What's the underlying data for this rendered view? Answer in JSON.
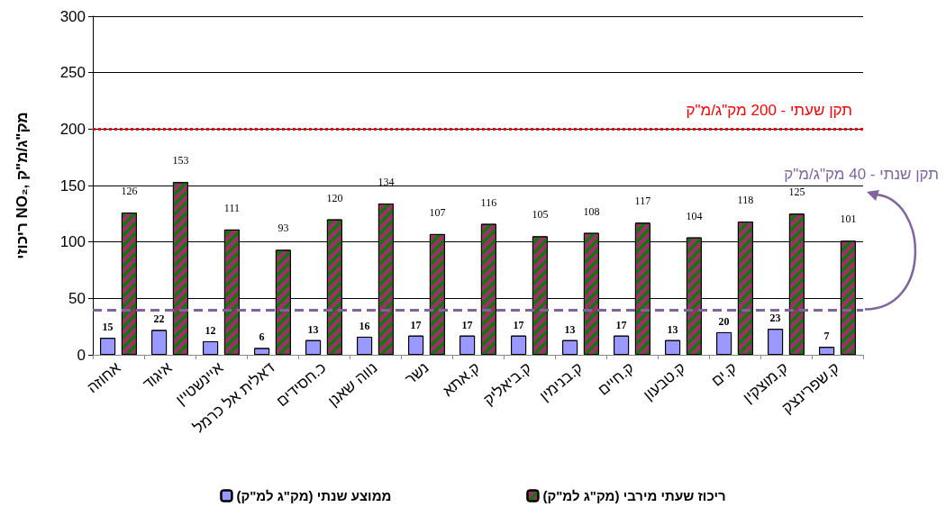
{
  "chart_data": {
    "type": "bar",
    "ylabel": "ריכוזי NO₂, מק\"ג/מ\"ק",
    "categories": [
      "אחוזה",
      "איגוד",
      "איינשטיין",
      "דאלית אל כרמל",
      "כ.חסידים",
      "נווה שאנן",
      "נשר",
      "ק.אתא",
      "ק.ביאליק",
      "ק.בנימין",
      "ק.חיים",
      "ק.טבעון",
      "ק.ים",
      "ק.מוצקין",
      "ק.שפרינצק"
    ],
    "series": [
      {
        "name": "ממוצע שנתי (מק\"ג למ\"ק)",
        "color": "#9999ff",
        "values": [
          15,
          22,
          12,
          6,
          13,
          16,
          17,
          17,
          17,
          13,
          17,
          13,
          20,
          23,
          7
        ]
      },
      {
        "name": "ריכוז שעתי מירבי (מק\"ג למ\"ק)",
        "color": "#993366",
        "values": [
          126,
          153,
          111,
          93,
          120,
          134,
          107,
          116,
          105,
          108,
          117,
          104,
          118,
          125,
          101
        ]
      }
    ],
    "ylim": [
      0,
      300
    ],
    "yticks": [
      0,
      50,
      100,
      150,
      200,
      250,
      300
    ],
    "grid": "y",
    "legend": "bottom",
    "data_labels": true,
    "ref_lines": [
      {
        "axis": "y",
        "value": 200,
        "label": "תקן שעתי - 200 מק\"ג/מ\"ק",
        "color": "#ff0000",
        "line_style": "dotted"
      },
      {
        "axis": "y",
        "value": 40,
        "label": "תקן שנתי - 40 מק\"ג/מ\"ק",
        "color": "#8064a2",
        "line_style": "dashed"
      }
    ]
  }
}
